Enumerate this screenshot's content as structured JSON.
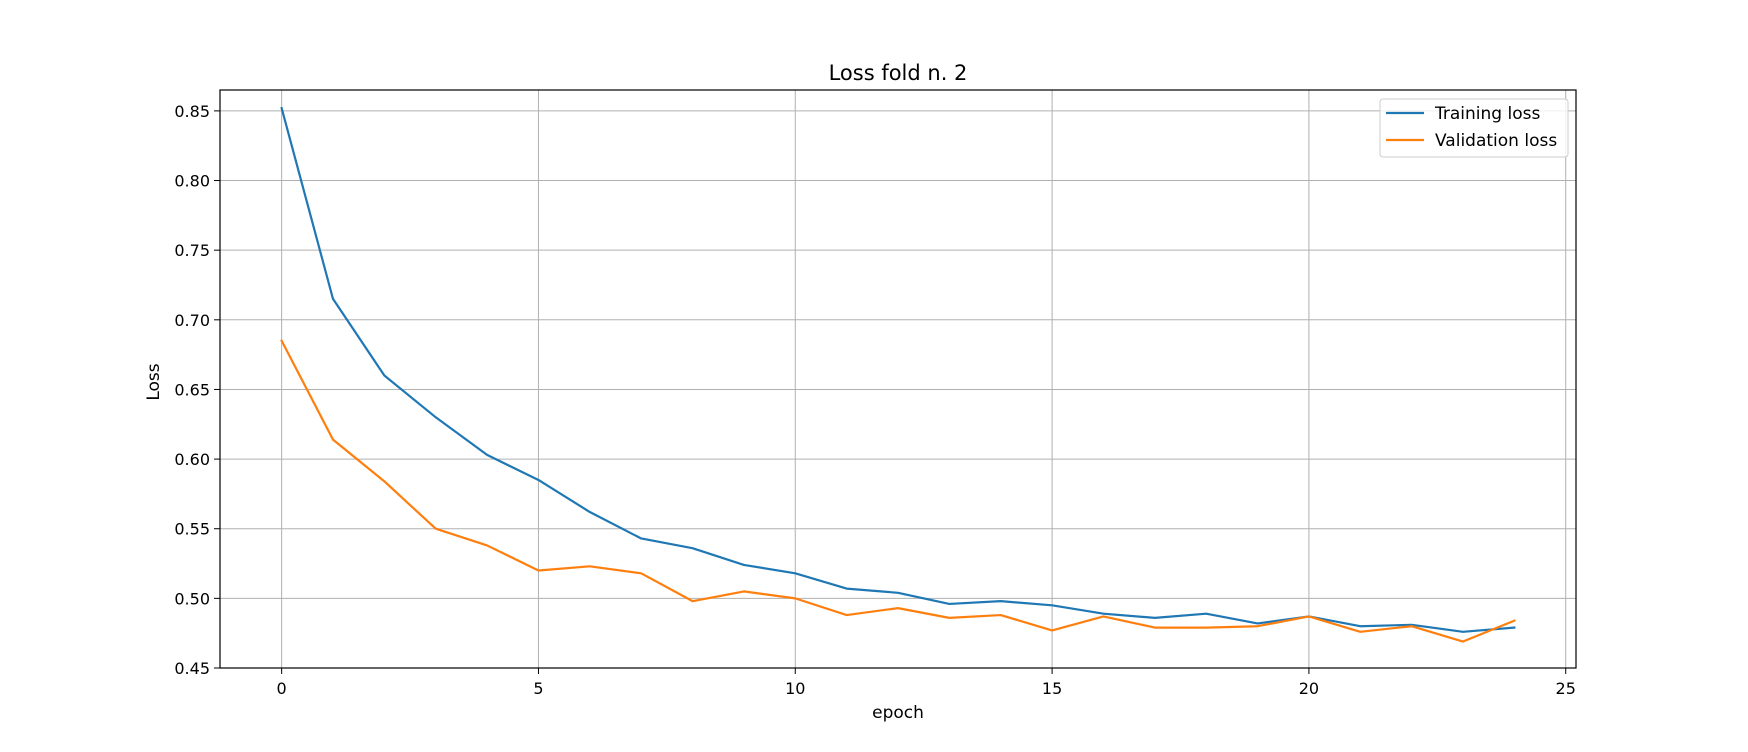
{
  "chart_data": {
    "type": "line",
    "title": "Loss fold n. 2",
    "xlabel": "epoch",
    "ylabel": "Loss",
    "xlim": [
      -1.2,
      25.2
    ],
    "ylim": [
      0.45,
      0.865
    ],
    "xticks": [
      0,
      5,
      10,
      15,
      20,
      25
    ],
    "yticks": [
      0.45,
      0.5,
      0.55,
      0.6,
      0.65,
      0.7,
      0.75,
      0.8,
      0.85
    ],
    "xtick_labels": [
      "0",
      "5",
      "10",
      "15",
      "20",
      "25"
    ],
    "ytick_labels": [
      "0.45",
      "0.50",
      "0.55",
      "0.60",
      "0.65",
      "0.70",
      "0.75",
      "0.80",
      "0.85"
    ],
    "grid": true,
    "legend_position": "top-right",
    "x": [
      0,
      1,
      2,
      3,
      4,
      5,
      6,
      7,
      8,
      9,
      10,
      11,
      12,
      13,
      14,
      15,
      16,
      17,
      18,
      19,
      20,
      21,
      22,
      23,
      24
    ],
    "series": [
      {
        "name": "Training loss",
        "color": "#1f77b4",
        "values": [
          0.852,
          0.715,
          0.66,
          0.63,
          0.603,
          0.585,
          0.562,
          0.543,
          0.536,
          0.524,
          0.518,
          0.507,
          0.504,
          0.496,
          0.498,
          0.495,
          0.489,
          0.486,
          0.489,
          0.482,
          0.487,
          0.48,
          0.481,
          0.476,
          0.479
        ]
      },
      {
        "name": "Validation loss",
        "color": "#ff7f0e",
        "values": [
          0.685,
          0.614,
          0.584,
          0.55,
          0.538,
          0.52,
          0.523,
          0.518,
          0.498,
          0.505,
          0.5,
          0.488,
          0.493,
          0.486,
          0.488,
          0.477,
          0.487,
          0.479,
          0.479,
          0.48,
          0.487,
          0.476,
          0.48,
          0.469,
          0.484
        ]
      }
    ]
  }
}
